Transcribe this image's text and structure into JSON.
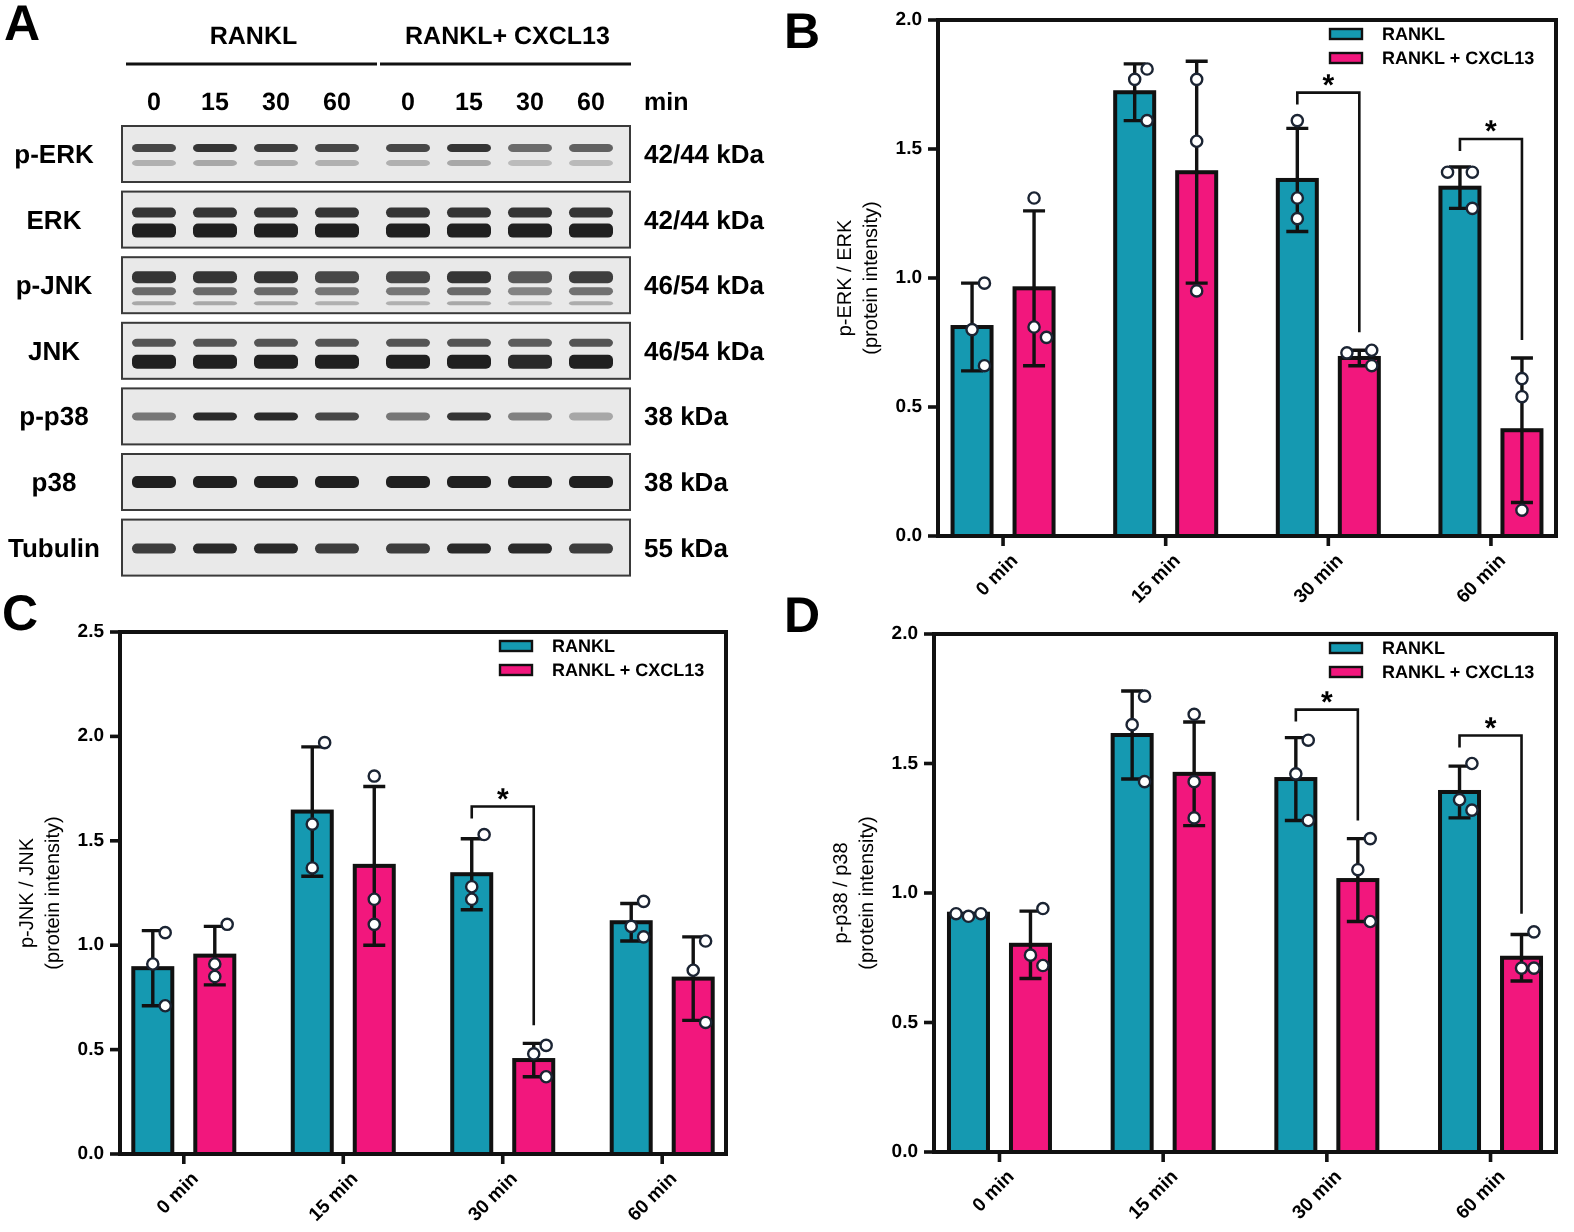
{
  "chart_data": [
    {
      "type": "other",
      "title": "A",
      "categories": [
        "0",
        "15",
        "30",
        "60",
        "0",
        "15",
        "30",
        "60"
      ],
      "xlabel": "min",
      "y_categories": [
        "p-ERK",
        "ERK",
        "p-JNK",
        "JNK",
        "p-p38",
        "p38",
        "Tubulin"
      ],
      "y2_categories": [
        "42/44 kDa",
        "42/44 kDa",
        "46/54 kDa",
        "46/54 kDa",
        "38 kDa",
        "38 kDa",
        "55 kDa"
      ],
      "annotations": [
        "RANKL",
        "RANKL+ CXCL13"
      ]
    },
    {
      "type": "bar",
      "title": "B",
      "ylabel": "p-ERK / ERK\n(protein intensity)",
      "categories": [
        "0 min",
        "15 min",
        "30 min",
        "60 min"
      ],
      "series": [
        {
          "name": "RANKL",
          "color": "#1599b1",
          "values": [
            0.81,
            1.72,
            1.38,
            1.35
          ],
          "errors": [
            0.17,
            0.11,
            0.2,
            0.08
          ]
        },
        {
          "name": "RANKL + CXCL13",
          "color": "#f2177d",
          "values": [
            0.96,
            1.41,
            0.69,
            0.41
          ],
          "errors": [
            0.3,
            0.43,
            0.03,
            0.28
          ]
        },
        {
          "type": "scatter",
          "color": "#ffffff",
          "marker": "circle",
          "x": [
            "0 min",
            "0 min",
            "0 min",
            "15 min",
            "15 min",
            "15 min",
            "30 min",
            "30 min",
            "30 min",
            "60 min",
            "60 min",
            "60 min"
          ],
          "values": [
            0.98,
            0.8,
            0.66,
            1.81,
            1.77,
            1.61,
            1.61,
            1.31,
            1.23,
            1.41,
            1.41,
            1.27
          ]
        },
        {
          "type": "scatter",
          "color": "#ffffff",
          "marker": "circle",
          "x": [
            "0 min",
            "0 min",
            "0 min",
            "15 min",
            "15 min",
            "15 min",
            "30 min",
            "30 min",
            "30 min",
            "60 min",
            "60 min",
            "60 min"
          ],
          "values": [
            1.31,
            0.81,
            0.77,
            1.77,
            1.53,
            0.95,
            0.72,
            0.71,
            0.66,
            0.61,
            0.54,
            0.1
          ]
        }
      ],
      "ylim": [
        0,
        2
      ],
      "yticks": [
        {
          "value": 0,
          "label": "0.0"
        },
        0.5,
        {
          "value": 1,
          "label": "1.0"
        },
        1.5,
        {
          "value": 2,
          "label": "2.0"
        }
      ],
      "legend": "top right",
      "annotations": [
        "*",
        "*"
      ]
    },
    {
      "type": "bar",
      "title": "C",
      "ylabel": "p-JNK / JNK\n(protein intensity)",
      "categories": [
        "0 min",
        "15 min",
        "30 min",
        "60 min"
      ],
      "series": [
        {
          "name": "RANKL",
          "color": "#1599b1",
          "values": [
            0.89,
            1.64,
            1.34,
            1.11
          ],
          "errors": [
            0.18,
            0.31,
            0.17,
            0.09
          ]
        },
        {
          "name": "RANKL + CXCL13",
          "color": "#f2177d",
          "values": [
            0.95,
            1.38,
            0.45,
            0.84
          ],
          "errors": [
            0.14,
            0.38,
            0.08,
            0.2
          ]
        },
        {
          "type": "scatter",
          "color": "#ffffff",
          "marker": "circle",
          "x": [
            "0 min",
            "0 min",
            "0 min",
            "15 min",
            "15 min",
            "15 min",
            "30 min",
            "30 min",
            "30 min",
            "60 min",
            "60 min",
            "60 min"
          ],
          "values": [
            1.06,
            0.91,
            0.71,
            1.97,
            1.58,
            1.37,
            1.53,
            1.28,
            1.22,
            1.21,
            1.09,
            1.04
          ]
        },
        {
          "type": "scatter",
          "color": "#ffffff",
          "marker": "circle",
          "x": [
            "0 min",
            "0 min",
            "0 min",
            "15 min",
            "15 min",
            "15 min",
            "30 min",
            "30 min",
            "30 min",
            "60 min",
            "60 min",
            "60 min"
          ],
          "values": [
            1.1,
            0.91,
            0.85,
            1.81,
            1.22,
            1.1,
            0.52,
            0.48,
            0.37,
            1.02,
            0.88,
            0.63
          ]
        }
      ],
      "ylim": [
        0,
        2.5
      ],
      "yticks": [
        {
          "value": 0,
          "label": "0.0"
        },
        0.5,
        {
          "value": 1,
          "label": "1.0"
        },
        1.5,
        {
          "value": 2,
          "label": "2.0"
        },
        2.5
      ],
      "legend": "top right",
      "annotations": [
        "*"
      ]
    },
    {
      "type": "bar",
      "title": "D",
      "ylabel": "p-p38 / p38\n(protein intensity)",
      "categories": [
        "0 min",
        "15 min",
        "30 min",
        "60 min"
      ],
      "series": [
        {
          "name": "RANKL",
          "color": "#1599b1",
          "values": [
            0.92,
            1.61,
            1.44,
            1.39
          ],
          "errors": [
            null,
            0.17,
            0.16,
            0.1
          ]
        },
        {
          "name": "RANKL + CXCL13",
          "color": "#f2177d",
          "values": [
            0.8,
            1.46,
            1.05,
            0.75
          ],
          "errors": [
            0.13,
            0.2,
            0.16,
            0.09
          ]
        },
        {
          "type": "scatter",
          "color": "#ffffff",
          "marker": "circle",
          "x": [
            "0 min",
            "0 min",
            "0 min",
            "15 min",
            "15 min",
            "15 min",
            "30 min",
            "30 min",
            "30 min",
            "60 min",
            "60 min",
            "60 min"
          ],
          "values": [
            0.91,
            0.92,
            0.92,
            1.76,
            1.65,
            1.43,
            1.59,
            1.46,
            1.28,
            1.5,
            1.36,
            1.32
          ]
        },
        {
          "type": "scatter",
          "color": "#ffffff",
          "marker": "circle",
          "x": [
            "0 min",
            "0 min",
            "0 min",
            "15 min",
            "15 min",
            "15 min",
            "30 min",
            "30 min",
            "30 min",
            "60 min",
            "60 min",
            "60 min"
          ],
          "values": [
            0.94,
            0.76,
            0.72,
            1.69,
            1.43,
            1.29,
            1.21,
            1.09,
            0.89,
            0.85,
            0.71,
            0.71
          ]
        }
      ],
      "ylim": [
        0,
        2
      ],
      "yticks": [
        {
          "value": 0,
          "label": "0.0"
        },
        0.5,
        {
          "value": 1,
          "label": "1.0"
        },
        1.5,
        {
          "value": 2,
          "label": "2.0"
        }
      ],
      "legend": "top right",
      "annotations": [
        "*",
        "*"
      ]
    }
  ]
}
